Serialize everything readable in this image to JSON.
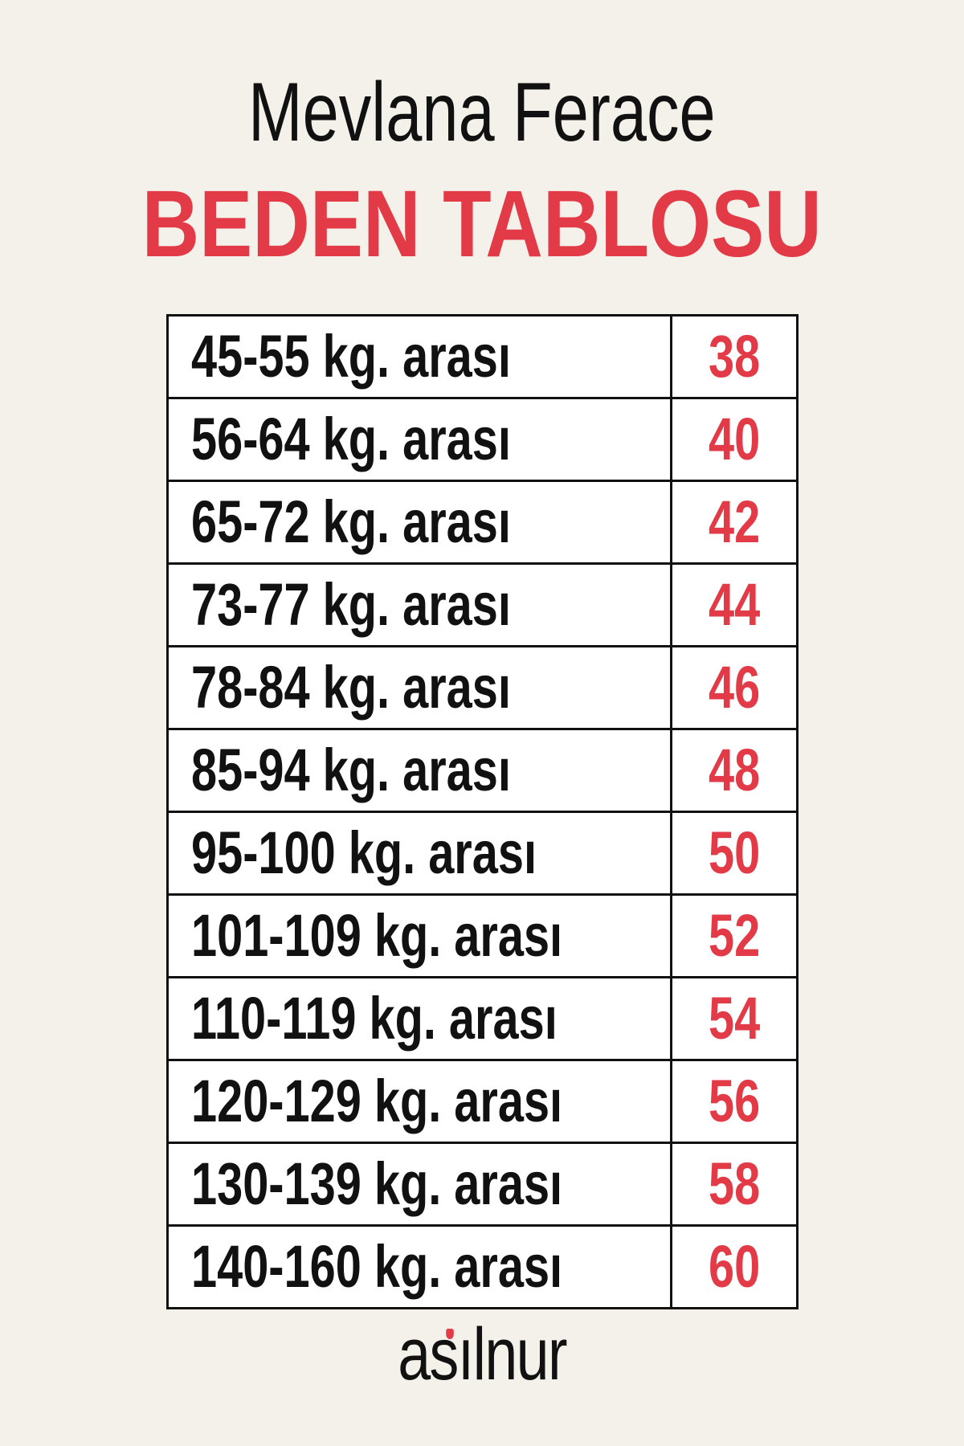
{
  "title": "Mevlana Ferace",
  "subtitle": "BEDEN TABLOSU",
  "colors": {
    "accent": "#e23a46",
    "background": "#f4f1eb",
    "text": "#111111"
  },
  "rows": [
    {
      "range": "45-55 kg. arası",
      "size": "38"
    },
    {
      "range": "56-64 kg. arası",
      "size": "40"
    },
    {
      "range": "65-72 kg. arası",
      "size": "42"
    },
    {
      "range": "73-77 kg. arası",
      "size": "44"
    },
    {
      "range": "78-84 kg. arası",
      "size": "46"
    },
    {
      "range": "85-94 kg. arası",
      "size": "48"
    },
    {
      "range": "95-100 kg. arası",
      "size": "50"
    },
    {
      "range": "101-109 kg. arası",
      "size": "52"
    },
    {
      "range": "110-119 kg. arası",
      "size": "54"
    },
    {
      "range": "120-129 kg. arası",
      "size": "56"
    },
    {
      "range": "130-139 kg. arası",
      "size": "58"
    },
    {
      "range": "140-160 kg. arası",
      "size": "60"
    }
  ],
  "logo": "asılnur"
}
